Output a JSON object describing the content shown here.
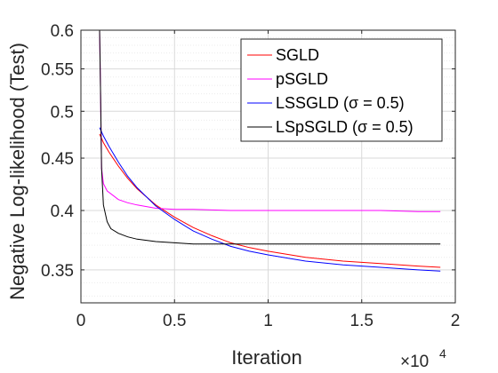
{
  "chart_data": {
    "type": "line",
    "xlabel": "Iteration",
    "ylabel": "Negative Log-likelihood (Test)",
    "x_exponent_label": "×10",
    "x_exponent_power": "4",
    "xlim": [
      0,
      20000
    ],
    "ylim": [
      0.325,
      0.6
    ],
    "yscale": "log",
    "grid": true,
    "minor_grid": true,
    "legend_position": "top-right",
    "x_ticks": [
      0,
      5000,
      10000,
      15000,
      20000
    ],
    "x_tick_labels": [
      "0",
      "0.5",
      "1",
      "1.5",
      "2"
    ],
    "y_ticks": [
      0.35,
      0.4,
      0.45,
      0.5,
      0.55,
      0.6
    ],
    "y_tick_labels": [
      "0.35",
      "0.4",
      "0.45",
      "0.5",
      "0.55",
      "0.6"
    ],
    "series": [
      {
        "name": "SGLD",
        "color": "#ff0000",
        "x": [
          1000,
          1200,
          1500,
          2000,
          2500,
          3000,
          4000,
          5000,
          6000,
          7000,
          8000,
          9000,
          10000,
          12000,
          14000,
          16000,
          18000,
          19200
        ],
        "y": [
          0.475,
          0.466,
          0.456,
          0.442,
          0.43,
          0.42,
          0.405,
          0.394,
          0.385,
          0.378,
          0.372,
          0.368,
          0.365,
          0.36,
          0.357,
          0.355,
          0.353,
          0.352
        ]
      },
      {
        "name": "pSGLD",
        "color": "#ff00ff",
        "x": [
          1000,
          1050,
          1100,
          1200,
          1400,
          1700,
          2000,
          2500,
          3000,
          4000,
          5000,
          6000,
          8000,
          10000,
          12000,
          14000,
          16000,
          18000,
          19200
        ],
        "y": [
          0.6,
          0.52,
          0.44,
          0.425,
          0.418,
          0.414,
          0.41,
          0.407,
          0.405,
          0.402,
          0.401,
          0.401,
          0.4,
          0.4,
          0.4,
          0.4,
          0.4,
          0.399,
          0.399
        ]
      },
      {
        "name": "LSSGLD (σ = 0.5)",
        "color": "#0000ff",
        "x": [
          1000,
          1200,
          1500,
          2000,
          2500,
          3000,
          4000,
          5000,
          6000,
          7000,
          8000,
          9000,
          10000,
          12000,
          14000,
          16000,
          18000,
          19200
        ],
        "y": [
          0.482,
          0.473,
          0.462,
          0.446,
          0.432,
          0.421,
          0.404,
          0.392,
          0.382,
          0.375,
          0.369,
          0.365,
          0.362,
          0.357,
          0.354,
          0.352,
          0.35,
          0.349
        ]
      },
      {
        "name": "LSpSGLD (σ = 0.5)",
        "color": "#000000",
        "x": [
          1000,
          1050,
          1100,
          1200,
          1400,
          1600,
          2000,
          2500,
          3000,
          4000,
          5000,
          6000,
          8000,
          10000,
          12000,
          14000,
          16000,
          18000,
          19200
        ],
        "y": [
          0.6,
          0.52,
          0.44,
          0.405,
          0.39,
          0.384,
          0.38,
          0.377,
          0.375,
          0.373,
          0.372,
          0.371,
          0.371,
          0.371,
          0.371,
          0.371,
          0.371,
          0.371,
          0.371
        ]
      }
    ]
  }
}
